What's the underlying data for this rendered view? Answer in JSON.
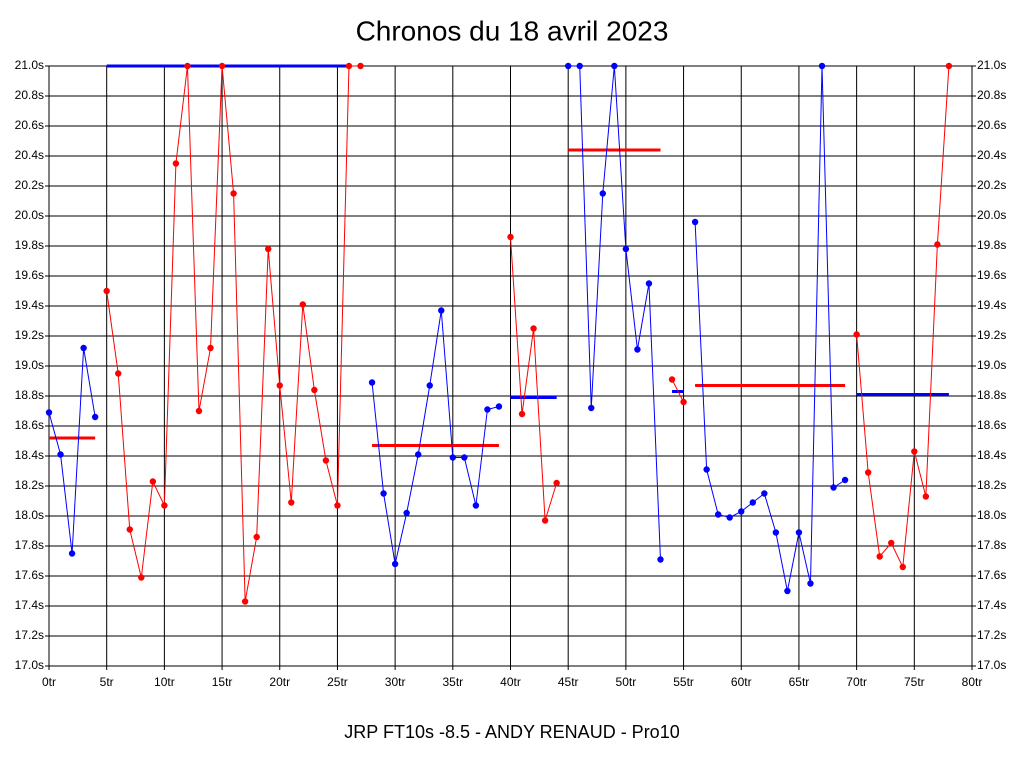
{
  "chart_data": {
    "type": "line",
    "title": "Chronos du 18 avril 2023",
    "x_label": "JRP FT10s -8.5 - ANDY RENAUD - Pro10",
    "xlim": [
      0,
      80
    ],
    "xticks": [
      {
        "value": 0,
        "label": "0tr"
      },
      {
        "value": 5,
        "label": "5tr"
      },
      {
        "value": 10,
        "label": "10tr"
      },
      {
        "value": 15,
        "label": "15tr"
      },
      {
        "value": 20,
        "label": "20tr"
      },
      {
        "value": 25,
        "label": "25tr"
      },
      {
        "value": 30,
        "label": "30tr"
      },
      {
        "value": 35,
        "label": "35tr"
      },
      {
        "value": 40,
        "label": "40tr"
      },
      {
        "value": 45,
        "label": "45tr"
      },
      {
        "value": 50,
        "label": "50tr"
      },
      {
        "value": 55,
        "label": "55tr"
      },
      {
        "value": 60,
        "label": "60tr"
      },
      {
        "value": 65,
        "label": "65tr"
      },
      {
        "value": 70,
        "label": "70tr"
      },
      {
        "value": 75,
        "label": "75tr"
      },
      {
        "value": 80,
        "label": "80tr"
      }
    ],
    "ylim": [
      17.0,
      21.0
    ],
    "yticks": [
      {
        "value": 17.0,
        "label": "17.0s"
      },
      {
        "value": 17.2,
        "label": "17.2s"
      },
      {
        "value": 17.4,
        "label": "17.4s"
      },
      {
        "value": 17.6,
        "label": "17.6s"
      },
      {
        "value": 17.8,
        "label": "17.8s"
      },
      {
        "value": 18.0,
        "label": "18.0s"
      },
      {
        "value": 18.2,
        "label": "18.2s"
      },
      {
        "value": 18.4,
        "label": "18.4s"
      },
      {
        "value": 18.6,
        "label": "18.6s"
      },
      {
        "value": 18.8,
        "label": "18.8s"
      },
      {
        "value": 19.0,
        "label": "19.0s"
      },
      {
        "value": 19.2,
        "label": "19.2s"
      },
      {
        "value": 19.4,
        "label": "19.4s"
      },
      {
        "value": 19.6,
        "label": "19.6s"
      },
      {
        "value": 19.8,
        "label": "19.8s"
      },
      {
        "value": 20.0,
        "label": "20.0s"
      },
      {
        "value": 20.2,
        "label": "20.2s"
      },
      {
        "value": 20.4,
        "label": "20.4s"
      },
      {
        "value": 20.6,
        "label": "20.6s"
      },
      {
        "value": 20.8,
        "label": "20.8s"
      },
      {
        "value": 21.0,
        "label": "21.0s"
      }
    ],
    "grid": true,
    "series": [
      {
        "color": "#0000ff",
        "x": [
          0,
          1,
          2,
          3,
          4
        ],
        "values": [
          18.69,
          18.41,
          17.75,
          19.12,
          18.66
        ]
      },
      {
        "color": "#ff0000",
        "x": [
          5,
          6,
          7,
          8,
          9,
          10,
          11,
          12,
          13,
          14,
          15,
          16,
          17,
          18,
          19,
          20,
          21,
          22,
          23,
          24,
          25,
          26,
          27
        ],
        "values": [
          19.5,
          18.95,
          17.91,
          17.59,
          18.23,
          18.07,
          20.35,
          21.0,
          18.7,
          19.12,
          21.0,
          20.15,
          17.43,
          17.86,
          19.78,
          18.87,
          18.09,
          19.41,
          18.84,
          18.37,
          18.07,
          21.0,
          21.0
        ]
      },
      {
        "color": "#0000ff",
        "x": [
          28,
          29,
          30,
          31,
          32,
          33,
          34,
          35,
          36,
          37,
          38,
          39
        ],
        "values": [
          18.89,
          18.15,
          17.68,
          18.02,
          18.41,
          18.87,
          19.37,
          18.39,
          18.39,
          18.07,
          18.71,
          18.73
        ]
      },
      {
        "color": "#ff0000",
        "x": [
          40,
          41,
          42,
          43,
          44
        ],
        "values": [
          19.86,
          18.68,
          19.25,
          17.97,
          18.22
        ]
      },
      {
        "color": "#0000ff",
        "x": [
          45,
          46,
          47,
          48,
          49,
          50,
          51,
          52,
          53
        ],
        "values": [
          21.0,
          21.0,
          18.72,
          20.15,
          21.0,
          19.78,
          19.11,
          19.55,
          17.71
        ]
      },
      {
        "color": "#ff0000",
        "x": [
          54,
          55
        ],
        "values": [
          18.91,
          18.76
        ]
      },
      {
        "color": "#0000ff",
        "x": [
          56,
          57,
          58,
          59,
          60,
          61,
          62,
          63,
          64,
          65,
          66,
          67,
          68,
          69
        ],
        "values": [
          19.96,
          18.31,
          18.01,
          17.99,
          18.03,
          18.09,
          18.15,
          17.89,
          17.5,
          17.89,
          17.55,
          21.0,
          18.19,
          18.24
        ]
      },
      {
        "color": "#ff0000",
        "x": [
          70,
          71,
          72,
          73,
          74,
          75,
          76,
          77,
          78
        ],
        "values": [
          19.21,
          18.29,
          17.73,
          17.82,
          17.66,
          18.43,
          18.13,
          19.81,
          21.0
        ]
      }
    ],
    "averages": [
      {
        "color": "#ff0000",
        "x": [
          0,
          4
        ],
        "value": 18.52
      },
      {
        "color": "#0000ff",
        "x": [
          5,
          26
        ],
        "value": 21.0
      },
      {
        "color": "#ff0000",
        "x": [
          28,
          39
        ],
        "value": 18.47
      },
      {
        "color": "#0000ff",
        "x": [
          40,
          44
        ],
        "value": 18.79
      },
      {
        "color": "#ff0000",
        "x": [
          45,
          53
        ],
        "value": 20.44
      },
      {
        "color": "#0000ff",
        "x": [
          54,
          55
        ],
        "value": 18.83
      },
      {
        "color": "#ff0000",
        "x": [
          56,
          69
        ],
        "value": 18.87
      },
      {
        "color": "#0000ff",
        "x": [
          70,
          78
        ],
        "value": 18.81
      }
    ]
  }
}
